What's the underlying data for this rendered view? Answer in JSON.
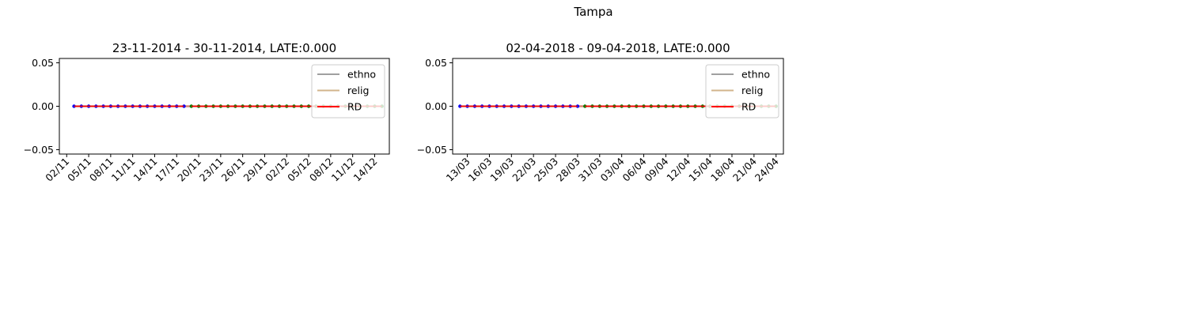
{
  "figure": {
    "title": "Tampa"
  },
  "chart_data": [
    {
      "type": "line",
      "title": "23-11-2014 - 30-11-2014, LATE:0.000",
      "xlabel": "",
      "ylabel": "",
      "x_axis": "date",
      "xlim": [
        "2014-11-01",
        "2014-12-16"
      ],
      "ylim": [
        -0.055,
        0.055
      ],
      "yticks": [
        -0.05,
        0.0,
        0.05
      ],
      "ytick_labels": [
        "−0.05",
        "0.00",
        "0.05"
      ],
      "xticks": [
        "2014-11-02",
        "2014-11-05",
        "2014-11-08",
        "2014-11-11",
        "2014-11-14",
        "2014-11-17",
        "2014-11-20",
        "2014-11-23",
        "2014-11-26",
        "2014-11-29",
        "2014-12-02",
        "2014-12-05",
        "2014-12-08",
        "2014-12-11",
        "2014-12-14"
      ],
      "xtick_labels": [
        "02/11",
        "05/11",
        "08/11",
        "11/11",
        "14/11",
        "17/11",
        "20/11",
        "23/11",
        "26/11",
        "29/11",
        "02/12",
        "05/12",
        "08/12",
        "11/12",
        "14/12"
      ],
      "legend": {
        "position": "upper right",
        "entries": [
          {
            "label": "ethno",
            "color": "#a0a0a0"
          },
          {
            "label": "relig",
            "color": "#d2b48c"
          },
          {
            "label": "RD",
            "color": "#ff0000"
          }
        ]
      },
      "series": [
        {
          "name": "ethno",
          "color": "#a0a0a0",
          "x": [
            "2014-11-03",
            "2014-12-15"
          ],
          "y": [
            0,
            0
          ]
        },
        {
          "name": "relig",
          "color": "#d2b48c",
          "x": [
            "2014-11-03",
            "2014-12-15"
          ],
          "y": [
            0,
            0
          ]
        },
        {
          "name": "RD",
          "color": "#ff0000",
          "x": [
            "2014-11-03",
            "2014-11-18",
            "2014-11-19",
            "2014-12-15"
          ],
          "y": [
            0,
            0,
            0,
            0
          ]
        }
      ],
      "pre_points": {
        "color": "#0000ff",
        "x_start": "2014-11-03",
        "x_end": "2014-11-18",
        "y": 0
      },
      "post_points": {
        "color": "#008000",
        "x_start": "2014-11-19",
        "x_end": "2014-12-15",
        "y": 0
      }
    },
    {
      "type": "line",
      "title": "02-04-2018 - 09-04-2018, LATE:0.000",
      "xlabel": "",
      "ylabel": "",
      "x_axis": "date",
      "xlim": [
        "2018-03-11",
        "2018-04-25"
      ],
      "ylim": [
        -0.055,
        0.055
      ],
      "yticks": [
        -0.05,
        0.0,
        0.05
      ],
      "ytick_labels": [
        "−0.05",
        "0.00",
        "0.05"
      ],
      "xticks": [
        "2018-03-13",
        "2018-03-16",
        "2018-03-19",
        "2018-03-22",
        "2018-03-25",
        "2018-03-28",
        "2018-03-31",
        "2018-04-03",
        "2018-04-06",
        "2018-04-09",
        "2018-04-12",
        "2018-04-15",
        "2018-04-18",
        "2018-04-21",
        "2018-04-24"
      ],
      "xtick_labels": [
        "13/03",
        "16/03",
        "19/03",
        "22/03",
        "25/03",
        "28/03",
        "31/03",
        "03/04",
        "06/04",
        "09/04",
        "12/04",
        "15/04",
        "18/04",
        "21/04",
        "24/04"
      ],
      "legend": {
        "position": "upper right",
        "entries": [
          {
            "label": "ethno",
            "color": "#a0a0a0"
          },
          {
            "label": "relig",
            "color": "#d2b48c"
          },
          {
            "label": "RD",
            "color": "#ff0000"
          }
        ]
      },
      "series": [
        {
          "name": "ethno",
          "color": "#a0a0a0",
          "x": [
            "2018-03-12",
            "2018-04-24"
          ],
          "y": [
            0,
            0
          ]
        },
        {
          "name": "relig",
          "color": "#d2b48c",
          "x": [
            "2018-03-12",
            "2018-04-24"
          ],
          "y": [
            0,
            0
          ]
        },
        {
          "name": "RD",
          "color": "#ff0000",
          "x": [
            "2018-03-12",
            "2018-03-28",
            "2018-03-29",
            "2018-04-24"
          ],
          "y": [
            0,
            0,
            0,
            0
          ]
        }
      ],
      "pre_points": {
        "color": "#0000ff",
        "x_start": "2018-03-12",
        "x_end": "2018-03-28",
        "y": 0
      },
      "post_points": {
        "color": "#008000",
        "x_start": "2018-03-29",
        "x_end": "2018-04-24",
        "y": 0
      }
    }
  ]
}
